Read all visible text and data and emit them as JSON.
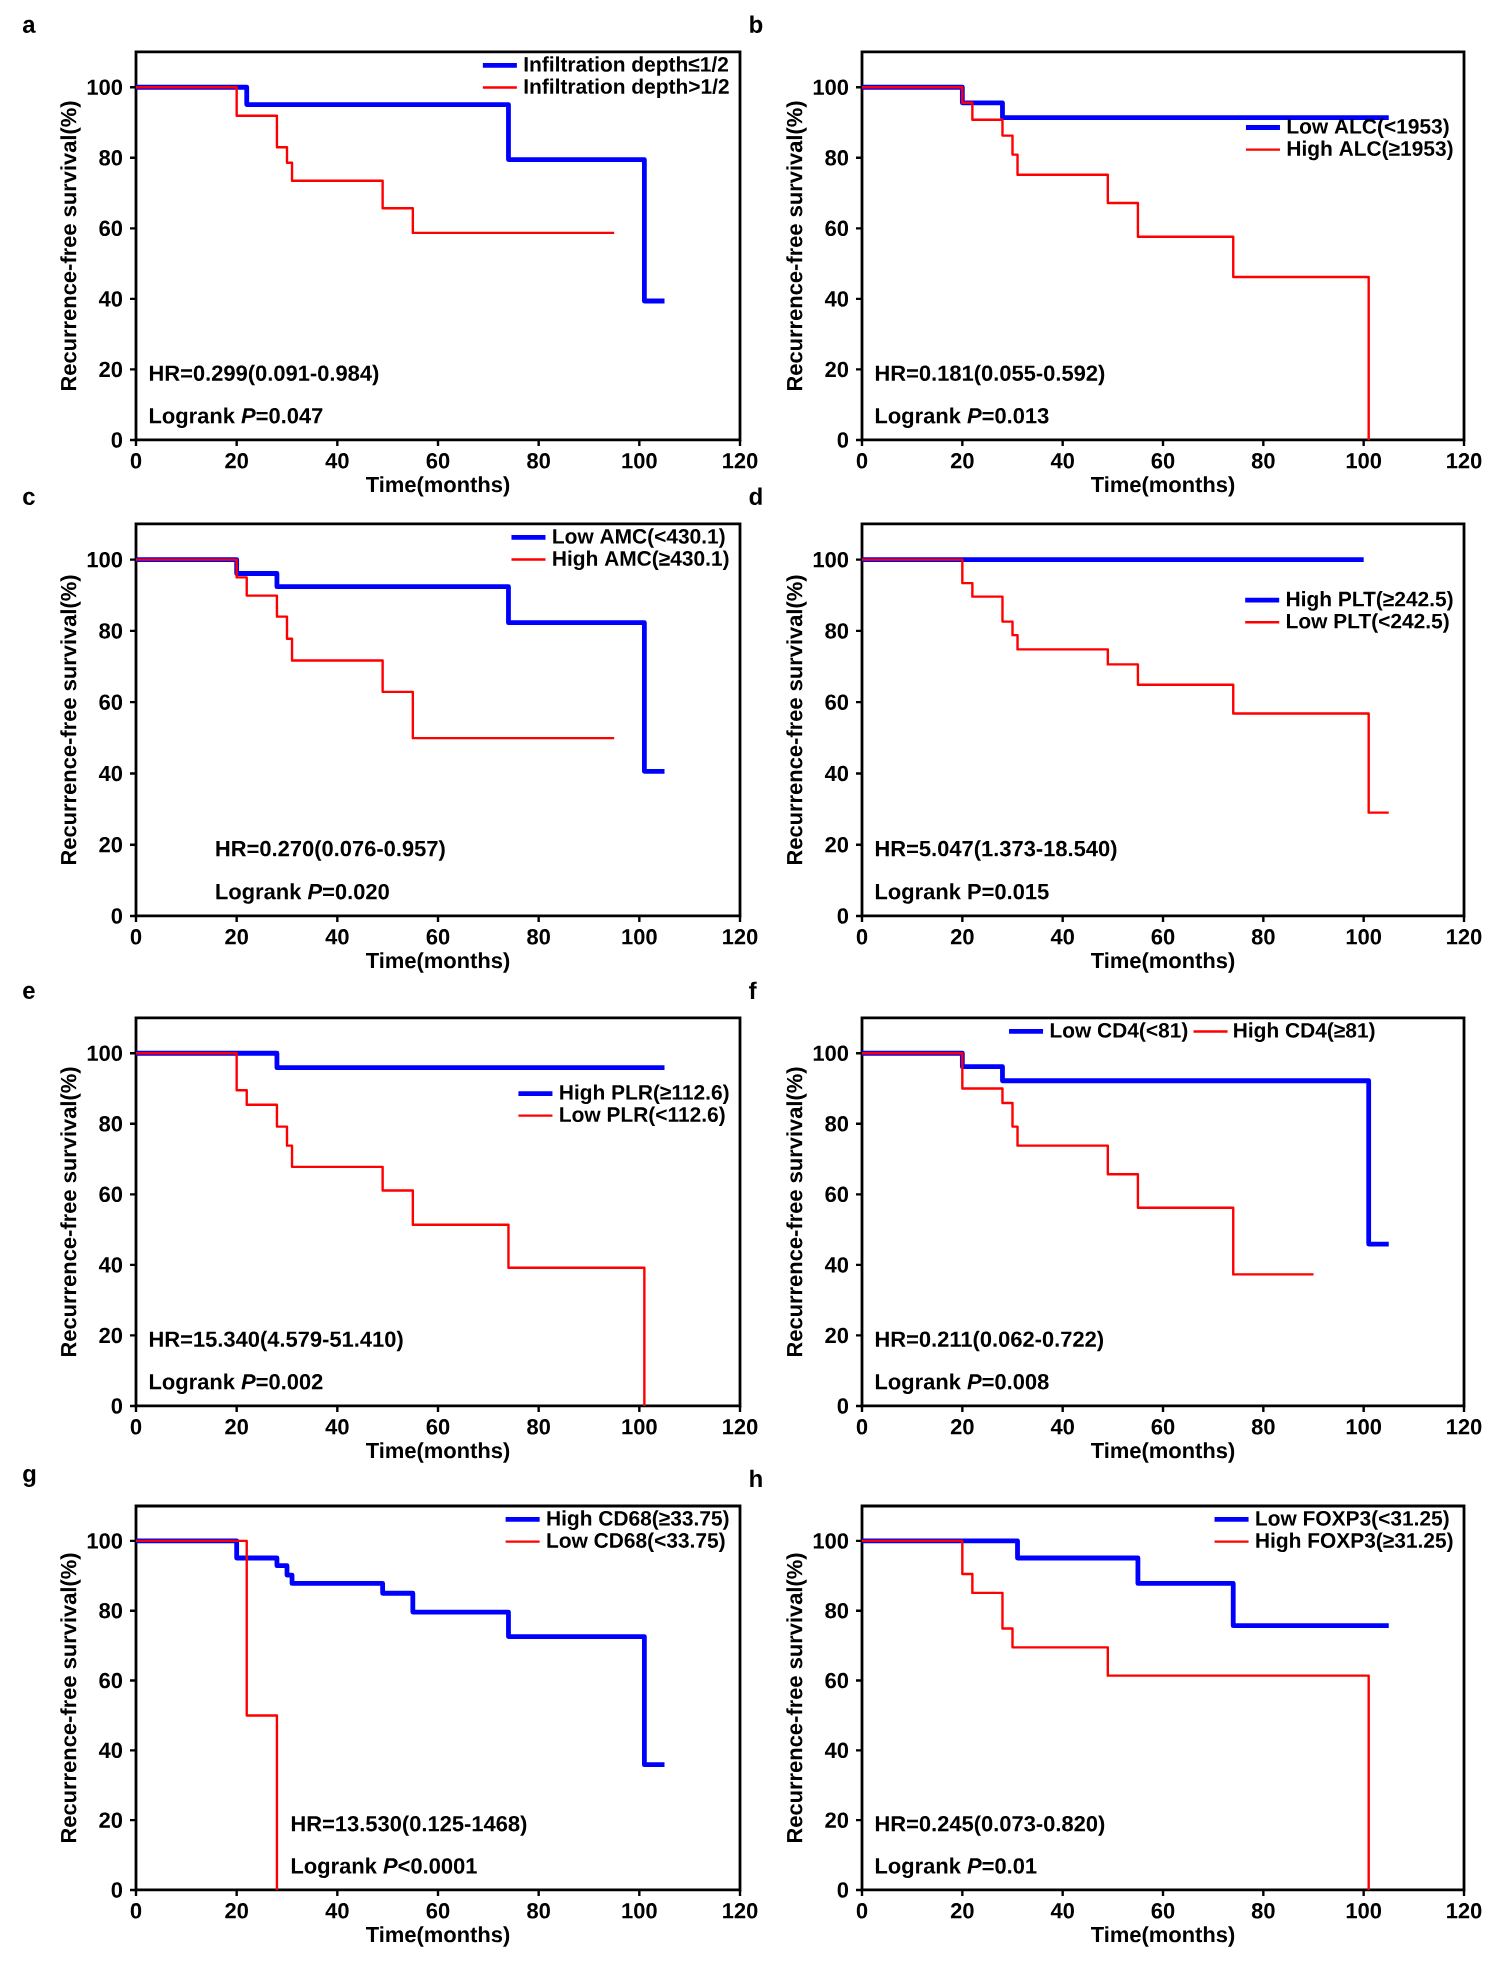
{
  "chart_data": [
    {
      "type": "step",
      "title": "a",
      "xlabel": "Time(months)",
      "ylabel": "Recurrence-free survival(%)",
      "xlim": [
        0,
        120
      ],
      "xticks": [
        0,
        20,
        40,
        60,
        80,
        100,
        120
      ],
      "ylim": [
        0,
        110
      ],
      "yticks": [
        0,
        20,
        40,
        60,
        80,
        100
      ],
      "legend": "top right",
      "series": [
        {
          "name": "Infiltration depth≤1/2",
          "color": "#0000ff",
          "x": [
            0,
            22,
            74,
            101,
            105
          ],
          "values": [
            100,
            95.1,
            79.5,
            39.4,
            39.4
          ]
        },
        {
          "name": "Infiltration depth>1/2",
          "color": "#ff0000",
          "x": [
            0,
            20,
            28,
            30,
            31,
            49,
            55,
            95
          ],
          "values": [
            100,
            91.9,
            83.0,
            78.6,
            73.5,
            65.7,
            58.7,
            58.7
          ]
        }
      ],
      "annotations": [
        "HR=0.299(0.091-0.984)",
        "Logrank *P*=0.047"
      ]
    },
    {
      "type": "step",
      "title": "b",
      "xlabel": "Time(months)",
      "ylabel": "Recurrence-free survival(%)",
      "xlim": [
        0,
        120
      ],
      "xticks": [
        0,
        20,
        40,
        60,
        80,
        100,
        120
      ],
      "ylim": [
        0,
        110
      ],
      "yticks": [
        0,
        20,
        40,
        60,
        80,
        100
      ],
      "legend": "right",
      "series": [
        {
          "name": "Low  ALC(<1953)",
          "color": "#0000ff",
          "x": [
            0,
            20,
            28,
            105
          ],
          "values": [
            100,
            95.6,
            91.4,
            91.4
          ]
        },
        {
          "name": "High ALC(≥1953)",
          "color": "#ff0000",
          "x": [
            0,
            20,
            22,
            28,
            30,
            31,
            49,
            55,
            74,
            101
          ],
          "values": [
            100,
            95.6,
            90.8,
            86.3,
            80.9,
            75.2,
            67.2,
            57.6,
            46.2,
            0
          ]
        }
      ],
      "annotations": [
        "HR=0.181(0.055-0.592)",
        "Logrank *P*=0.013"
      ]
    },
    {
      "type": "step",
      "title": "c",
      "xlabel": "Time(months)",
      "ylabel": "Recurrence-free survival(%)",
      "xlim": [
        0,
        120
      ],
      "xticks": [
        0,
        20,
        40,
        60,
        80,
        100,
        120
      ],
      "ylim": [
        0,
        110
      ],
      "yticks": [
        0,
        20,
        40,
        60,
        80,
        100
      ],
      "legend": "top right",
      "series": [
        {
          "name": "Low AMC(<430.1)",
          "color": "#0000ff",
          "x": [
            0,
            20,
            28,
            74,
            101,
            105
          ],
          "values": [
            100,
            96.1,
            92.4,
            82.3,
            40.6,
            40.6
          ]
        },
        {
          "name": "High AMC(≥430.1)",
          "color": "#ff0000",
          "x": [
            0,
            20,
            22,
            28,
            30,
            31,
            49,
            55,
            95
          ],
          "values": [
            100,
            95.0,
            89.9,
            84.0,
            77.8,
            71.7,
            62.9,
            49.9,
            49.9
          ]
        }
      ],
      "annotations": [
        "HR=0.270(0.076-0.957)",
        "Logrank *P*=0.020"
      ]
    },
    {
      "type": "step",
      "title": "d",
      "xlabel": "Time(months)",
      "ylabel": "Recurrence-free survival(%)",
      "xlim": [
        0,
        120
      ],
      "xticks": [
        0,
        20,
        40,
        60,
        80,
        100,
        120
      ],
      "ylim": [
        0,
        110
      ],
      "yticks": [
        0,
        20,
        40,
        60,
        80,
        100
      ],
      "legend": "right",
      "series": [
        {
          "name": "High PLT(≥242.5)",
          "color": "#0000ff",
          "x": [
            0,
            100
          ],
          "values": [
            100,
            100
          ]
        },
        {
          "name": "Low PLT(<242.5)",
          "color": "#ff0000",
          "x": [
            0,
            20,
            22,
            28,
            30,
            31,
            49,
            55,
            74,
            101,
            105
          ],
          "values": [
            100,
            93.4,
            89.6,
            82.6,
            78.8,
            74.8,
            70.6,
            64.9,
            56.8,
            29.0,
            29.0
          ]
        }
      ],
      "annotations": [
        "HR=5.047(1.373-18.540)",
        "Logrank P=0.015"
      ]
    },
    {
      "type": "step",
      "title": "e",
      "xlabel": "Time(months)",
      "ylabel": "Recurrence-free survival(%)",
      "xlim": [
        0,
        120
      ],
      "xticks": [
        0,
        20,
        40,
        60,
        80,
        100,
        120
      ],
      "ylim": [
        0,
        110
      ],
      "yticks": [
        0,
        20,
        40,
        60,
        80,
        100
      ],
      "legend": "right",
      "series": [
        {
          "name": "High PLR(≥112.6)",
          "color": "#0000ff",
          "x": [
            0,
            28,
            105
          ],
          "values": [
            100,
            95.9,
            95.9
          ]
        },
        {
          "name": "Low PLR(<112.6)",
          "color": "#ff0000",
          "x": [
            0,
            20,
            22,
            28,
            30,
            31,
            49,
            55,
            74,
            101
          ],
          "values": [
            100,
            89.5,
            85.4,
            79.2,
            73.8,
            67.8,
            61.1,
            51.4,
            39.2,
            0
          ]
        }
      ],
      "annotations": [
        "HR=15.340(4.579-51.410)",
        "Logrank *P*=0.002"
      ]
    },
    {
      "type": "step",
      "title": "f",
      "xlabel": "Time(months)",
      "ylabel": "Recurrence-free survival(%)",
      "xlim": [
        0,
        120
      ],
      "xticks": [
        0,
        20,
        40,
        60,
        80,
        100,
        120
      ],
      "ylim": [
        0,
        110
      ],
      "yticks": [
        0,
        20,
        40,
        60,
        80,
        100
      ],
      "legend": "top",
      "series": [
        {
          "name": "Low CD4(<81)",
          "color": "#0000ff",
          "x": [
            0,
            20,
            28,
            101,
            105
          ],
          "values": [
            100,
            96.2,
            92.2,
            45.9,
            45.9
          ]
        },
        {
          "name": "High CD4(≥81)",
          "color": "#ff0000",
          "x": [
            0,
            20,
            28,
            30,
            31,
            49,
            55,
            74,
            90
          ],
          "values": [
            100,
            90.0,
            85.9,
            79.2,
            73.8,
            65.7,
            56.2,
            37.3,
            37.3
          ]
        }
      ],
      "annotations": [
        "HR=0.211(0.062-0.722)",
        "Logrank *P*=0.008"
      ]
    },
    {
      "type": "step",
      "title": "g",
      "xlabel": "Time(months)",
      "ylabel": "Recurrence-free survival(%)",
      "xlim": [
        0,
        120
      ],
      "xticks": [
        0,
        20,
        40,
        60,
        80,
        100,
        120
      ],
      "ylim": [
        0,
        110
      ],
      "yticks": [
        0,
        20,
        40,
        60,
        80,
        100
      ],
      "legend": "top right",
      "series": [
        {
          "name": "High CD68(≥33.75)",
          "color": "#0000ff",
          "x": [
            0,
            20,
            28,
            30,
            31,
            49,
            55,
            74,
            101,
            105
          ],
          "values": [
            100,
            95.1,
            92.9,
            90.2,
            87.8,
            85.0,
            79.6,
            72.6,
            35.9,
            35.9
          ]
        },
        {
          "name": "Low CD68(<33.75)",
          "color": "#ff0000",
          "x": [
            0,
            22,
            28
          ],
          "values": [
            100,
            50,
            0
          ]
        }
      ],
      "annotations": [
        "HR=13.530(0.125-1468)",
        "Logrank *P*<0.0001"
      ]
    },
    {
      "type": "step",
      "title": "h",
      "xlabel": "Time(months)",
      "ylabel": "Recurrence-free survival(%)",
      "xlim": [
        0,
        120
      ],
      "xticks": [
        0,
        20,
        40,
        60,
        80,
        100,
        120
      ],
      "ylim": [
        0,
        110
      ],
      "yticks": [
        0,
        20,
        40,
        60,
        80,
        100
      ],
      "legend": "top right",
      "series": [
        {
          "name": "Low FOXP3(<31.25)",
          "color": "#0000ff",
          "x": [
            0,
            31,
            55,
            74,
            105
          ],
          "values": [
            100,
            95.1,
            87.8,
            75.7,
            75.7
          ]
        },
        {
          "name": "High FOXP3(≥31.25)",
          "color": "#ff0000",
          "x": [
            0,
            20,
            22,
            28,
            30,
            49,
            101
          ],
          "values": [
            100,
            90.5,
            85.1,
            74.9,
            69.5,
            61.4,
            0
          ]
        }
      ],
      "annotations": [
        "HR=0.245(0.073-0.820)",
        "Logrank *P*=0.01"
      ]
    }
  ]
}
